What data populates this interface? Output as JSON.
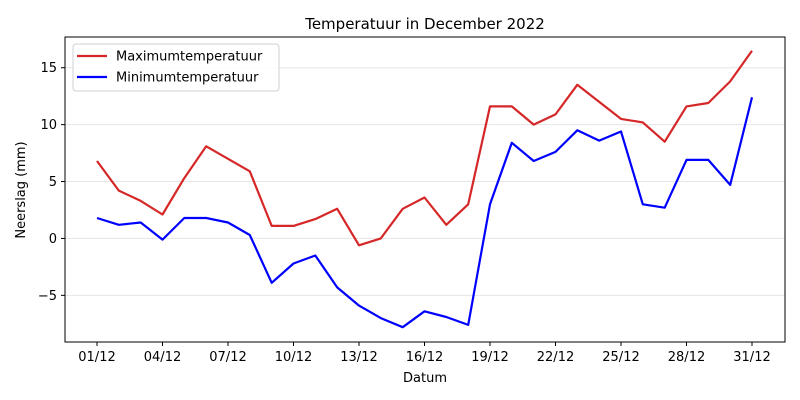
{
  "chart_data": {
    "type": "line",
    "title": "Temperatuur in December 2022",
    "xlabel": "Datum",
    "ylabel": "Neerslag (mm)",
    "x": [
      "01/12",
      "02/12",
      "03/12",
      "04/12",
      "05/12",
      "06/12",
      "07/12",
      "08/12",
      "09/12",
      "10/12",
      "11/12",
      "12/12",
      "13/12",
      "14/12",
      "15/12",
      "16/12",
      "17/12",
      "18/12",
      "19/12",
      "20/12",
      "21/12",
      "22/12",
      "23/12",
      "24/12",
      "25/12",
      "26/12",
      "27/12",
      "28/12",
      "29/12",
      "30/12",
      "31/12"
    ],
    "xticks": [
      "01/12",
      "04/12",
      "07/12",
      "10/12",
      "13/12",
      "16/12",
      "19/12",
      "22/12",
      "25/12",
      "28/12",
      "31/12"
    ],
    "yticks": [
      -5,
      0,
      5,
      10,
      15
    ],
    "ylim": [
      -9.1,
      17.7
    ],
    "grid": "y",
    "legend_position": "upper left",
    "series": [
      {
        "name": "Maximumtemperatuur",
        "color": "#d62728",
        "values": [
          6.8,
          4.2,
          3.3,
          2.1,
          5.3,
          8.1,
          7.0,
          5.9,
          1.1,
          1.1,
          1.7,
          2.6,
          -0.6,
          0.0,
          2.6,
          3.6,
          1.2,
          3.0,
          11.6,
          11.6,
          10.0,
          10.9,
          13.5,
          12.0,
          10.5,
          10.2,
          8.5,
          11.6,
          11.9,
          13.8,
          16.5
        ]
      },
      {
        "name": "Minimumtemperatuur",
        "color": "#0000ff",
        "values": [
          1.8,
          1.2,
          1.4,
          -0.1,
          1.8,
          1.8,
          1.4,
          0.3,
          -3.9,
          -2.2,
          -1.5,
          -4.3,
          -5.9,
          -7.0,
          -7.8,
          -6.4,
          -6.9,
          -7.6,
          3.0,
          8.4,
          6.8,
          7.6,
          9.5,
          8.6,
          9.4,
          3.0,
          2.7,
          6.9,
          6.9,
          4.7,
          12.4
        ]
      }
    ]
  }
}
